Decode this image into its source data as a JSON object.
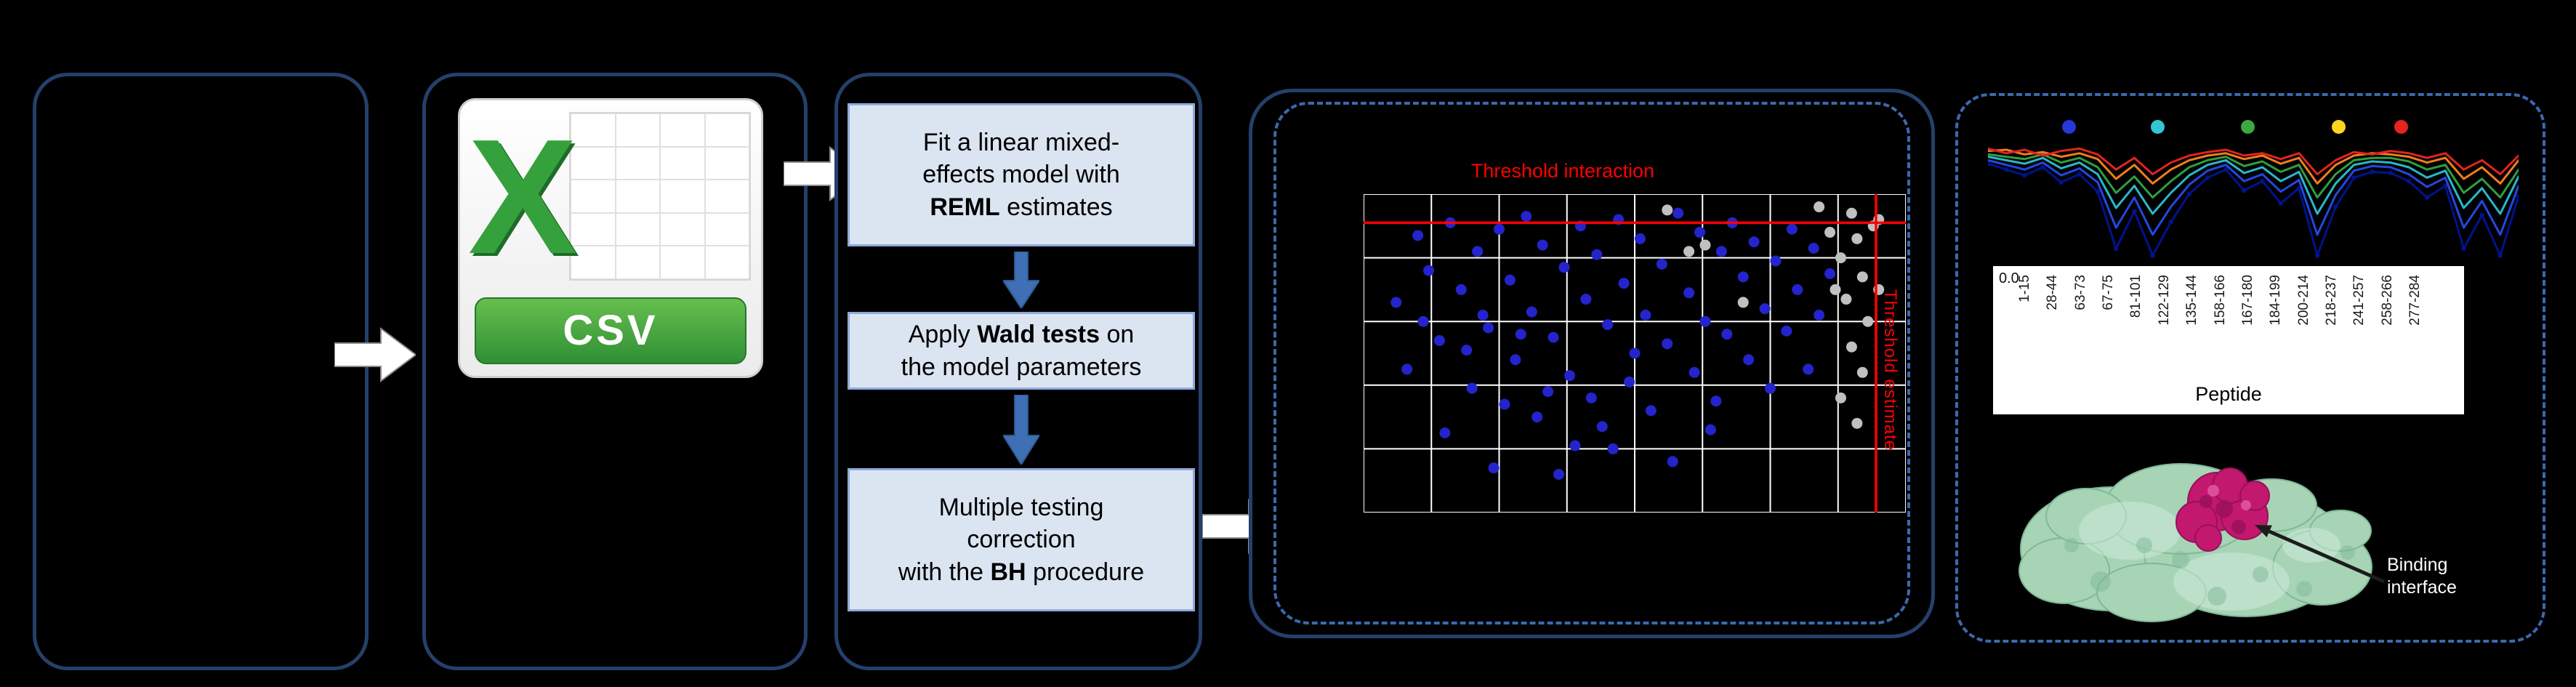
{
  "figure": {
    "background": "#000000"
  },
  "colors": {
    "panel_border": "#24406b",
    "dashed_border": "#3c69ad",
    "step_fill": "#dbe5f1",
    "step_border": "#8faadc",
    "flow_arrow_fill": "#ffffff",
    "down_arrow_fill": "#3f6fb5",
    "grid": "#ffffff",
    "threshold": "#ff0000",
    "dot_blue": "#2424cc",
    "dot_gray": "#c0c0c0",
    "csv_green": "#35a13c",
    "csv_banner_green": "#2f8f35",
    "protein_green": "#a7d4b5",
    "protein_green_dark": "#7fb898",
    "protein_green_light": "#cdeada",
    "protein_magenta": "#c2186e",
    "protein_magenta_dark": "#97105a",
    "protein_magenta_light": "#e055a0",
    "annotation_arrow": "#1c1c1c"
  },
  "csv": {
    "x_letter": "X",
    "label": "CSV"
  },
  "steps": [
    {
      "parts": [
        {
          "t": "Fit a linear mixed-\neffects model with\n",
          "b": false
        },
        {
          "t": "REML",
          "b": true
        },
        {
          "t": " estimates",
          "b": false
        }
      ]
    },
    {
      "parts": [
        {
          "t": "Apply ",
          "b": false
        },
        {
          "t": "Wald tests",
          "b": true
        },
        {
          "t": " on\nthe model parameters",
          "b": false
        }
      ]
    },
    {
      "parts": [
        {
          "t": "Multiple testing\ncorrection\nwith the ",
          "b": false
        },
        {
          "t": "BH",
          "b": true
        },
        {
          "t": " procedure",
          "b": false
        }
      ]
    }
  ],
  "scatter": {
    "title": "Threshold interaction",
    "side_label": "Threshold estimate",
    "h_threshold_pct": 9,
    "v_threshold_pct": 94.5,
    "grid": {
      "cols": 8,
      "rows": 5
    },
    "blue_points": [
      [
        6,
        34
      ],
      [
        8,
        55
      ],
      [
        10,
        13
      ],
      [
        11,
        40
      ],
      [
        12,
        24
      ],
      [
        14,
        46
      ],
      [
        15,
        75
      ],
      [
        16,
        9
      ],
      [
        18,
        30
      ],
      [
        19,
        49
      ],
      [
        20,
        61
      ],
      [
        21,
        18
      ],
      [
        22,
        38
      ],
      [
        23,
        42
      ],
      [
        24,
        86
      ],
      [
        25,
        11
      ],
      [
        26,
        66
      ],
      [
        27,
        27
      ],
      [
        28,
        52
      ],
      [
        29,
        44
      ],
      [
        30,
        7
      ],
      [
        31,
        37
      ],
      [
        32,
        70
      ],
      [
        33,
        16
      ],
      [
        34,
        62
      ],
      [
        35,
        45
      ],
      [
        36,
        88
      ],
      [
        37,
        23
      ],
      [
        38,
        57
      ],
      [
        39,
        79
      ],
      [
        40,
        10
      ],
      [
        41,
        33
      ],
      [
        42,
        64
      ],
      [
        43,
        19
      ],
      [
        44,
        73
      ],
      [
        45,
        41
      ],
      [
        46,
        80
      ],
      [
        47,
        8
      ],
      [
        48,
        28
      ],
      [
        49,
        59
      ],
      [
        50,
        50
      ],
      [
        51,
        14
      ],
      [
        52,
        38
      ],
      [
        53,
        68
      ],
      [
        55,
        22
      ],
      [
        56,
        47
      ],
      [
        57,
        84
      ],
      [
        58,
        6
      ],
      [
        60,
        31
      ],
      [
        61,
        56
      ],
      [
        62,
        12
      ],
      [
        63,
        40
      ],
      [
        64,
        74
      ],
      [
        65,
        65
      ],
      [
        66,
        18
      ],
      [
        67,
        44
      ],
      [
        68,
        9
      ],
      [
        70,
        26
      ],
      [
        71,
        52
      ],
      [
        72,
        15
      ],
      [
        74,
        36
      ],
      [
        75,
        61
      ],
      [
        76,
        21
      ],
      [
        78,
        43
      ],
      [
        79,
        11
      ],
      [
        80,
        30
      ],
      [
        82,
        55
      ],
      [
        83,
        17
      ],
      [
        84,
        38
      ],
      [
        86,
        25
      ]
    ],
    "gray_points": [
      [
        56,
        5
      ],
      [
        60,
        18
      ],
      [
        63,
        16
      ],
      [
        70,
        34
      ],
      [
        84,
        4
      ],
      [
        86,
        12
      ],
      [
        87,
        30
      ],
      [
        88,
        20
      ],
      [
        88,
        64
      ],
      [
        89,
        33
      ],
      [
        90,
        6
      ],
      [
        90,
        48
      ],
      [
        91,
        14
      ],
      [
        91,
        72
      ],
      [
        92,
        26
      ],
      [
        92,
        56
      ],
      [
        93,
        40
      ],
      [
        94,
        10
      ],
      [
        95,
        8
      ],
      [
        95,
        30
      ]
    ]
  },
  "uptake_chart": {
    "ytick": "0.0",
    "xlabel": "Peptide",
    "peptides": [
      "1-15",
      "28-44",
      "63-73",
      "67-75",
      "81-101",
      "122-129",
      "135-144",
      "158-166",
      "167-180",
      "184-199",
      "200-214",
      "218-237",
      "241-257",
      "258-266",
      "277-284"
    ],
    "legend_dots": [
      {
        "color": "#2638d8",
        "x": 37
      },
      {
        "color": "#33c5d6",
        "x": 159
      },
      {
        "color": "#3aa93f",
        "x": 283
      },
      {
        "color": "#ffd41f",
        "x": 408
      },
      {
        "color": "#e3241f",
        "x": 494
      }
    ],
    "series": [
      {
        "name": "navy",
        "color": "#00138c",
        "markers": true,
        "values": [
          0.17,
          0.22,
          0.27,
          0.2,
          0.33,
          0.26,
          0.41,
          0.9,
          0.58,
          0.96,
          0.67,
          0.43,
          0.29,
          0.22,
          0.4,
          0.32,
          0.51,
          0.38,
          0.96,
          0.54,
          0.29,
          0.24,
          0.25,
          0.32,
          0.46,
          0.36,
          0.9,
          0.61,
          0.96,
          0.45
        ]
      },
      {
        "name": "blue",
        "color": "#2447e0",
        "markers": false,
        "values": [
          0.14,
          0.18,
          0.22,
          0.16,
          0.27,
          0.21,
          0.33,
          0.72,
          0.46,
          0.78,
          0.54,
          0.35,
          0.23,
          0.18,
          0.32,
          0.26,
          0.41,
          0.31,
          0.78,
          0.44,
          0.23,
          0.19,
          0.2,
          0.26,
          0.37,
          0.29,
          0.72,
          0.49,
          0.78,
          0.36
        ]
      },
      {
        "name": "cyan",
        "color": "#2ab7c9",
        "markers": false,
        "values": [
          0.11,
          0.14,
          0.17,
          0.12,
          0.21,
          0.16,
          0.26,
          0.55,
          0.36,
          0.6,
          0.42,
          0.27,
          0.18,
          0.14,
          0.25,
          0.2,
          0.32,
          0.24,
          0.6,
          0.34,
          0.18,
          0.15,
          0.16,
          0.2,
          0.29,
          0.23,
          0.55,
          0.38,
          0.6,
          0.28
        ]
      },
      {
        "name": "green",
        "color": "#2f9e3f",
        "markers": false,
        "values": [
          0.09,
          0.11,
          0.13,
          0.09,
          0.16,
          0.12,
          0.2,
          0.42,
          0.28,
          0.46,
          0.32,
          0.2,
          0.14,
          0.11,
          0.19,
          0.15,
          0.24,
          0.18,
          0.46,
          0.26,
          0.14,
          0.12,
          0.12,
          0.15,
          0.22,
          0.18,
          0.42,
          0.3,
          0.46,
          0.22
        ]
      },
      {
        "name": "orange",
        "color": "#f07d1a",
        "markers": false,
        "values": [
          0.06,
          0.05,
          0.09,
          0.07,
          0.11,
          0.08,
          0.13,
          0.3,
          0.18,
          0.34,
          0.22,
          0.14,
          0.1,
          0.08,
          0.13,
          0.1,
          0.17,
          0.12,
          0.34,
          0.18,
          0.1,
          0.08,
          0.09,
          0.11,
          0.16,
          0.12,
          0.3,
          0.2,
          0.34,
          0.14
        ]
      },
      {
        "name": "red",
        "color": "#e02421",
        "markers": false,
        "values": [
          0.04,
          0.08,
          0.05,
          0.1,
          0.06,
          0.04,
          0.09,
          0.22,
          0.12,
          0.26,
          0.16,
          0.1,
          0.07,
          0.05,
          0.1,
          0.08,
          0.13,
          0.08,
          0.26,
          0.14,
          0.07,
          0.09,
          0.06,
          0.08,
          0.12,
          0.08,
          0.22,
          0.14,
          0.26,
          0.1
        ]
      }
    ]
  },
  "protein": {
    "annotation": "Binding interface"
  }
}
